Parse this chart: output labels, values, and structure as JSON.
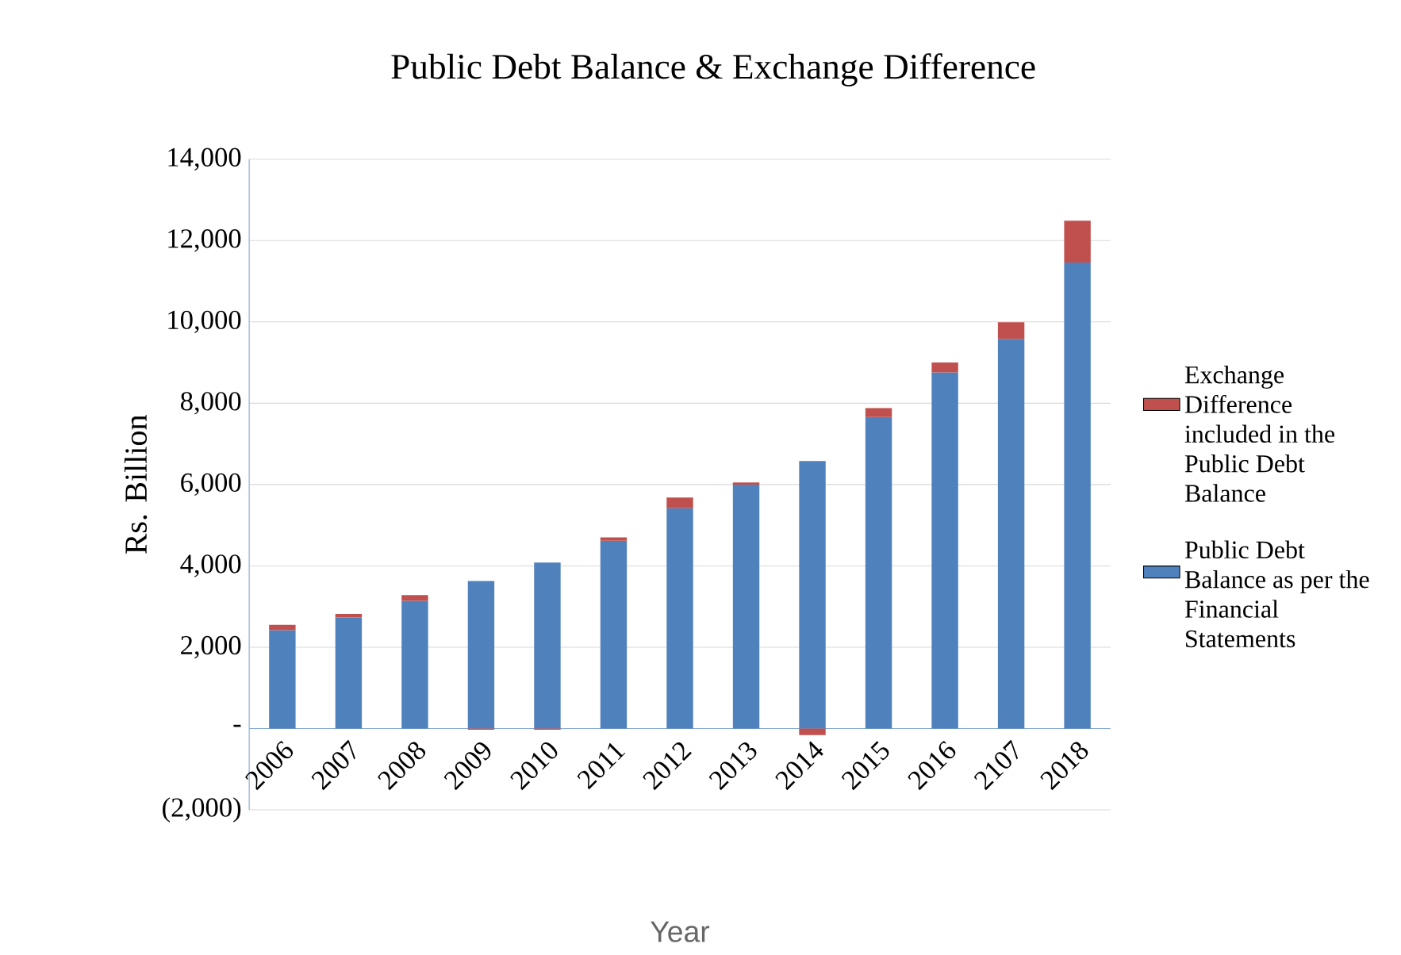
{
  "chart_data": {
    "type": "bar",
    "stacked": true,
    "title": "Public Debt Balance & Exchange Difference",
    "xlabel": "Year",
    "ylabel": "Rs. Billion",
    "categories": [
      "2006",
      "2007",
      "2008",
      "2009",
      "2010",
      "2011",
      "2012",
      "2013",
      "2014",
      "2015",
      "2016",
      "2107",
      "2018"
    ],
    "series": [
      {
        "name": "Public Debt Balance as per the Financial Statements",
        "color": "#4f81bd",
        "values": [
          2420,
          2730,
          3140,
          3630,
          4080,
          4620,
          5420,
          6000,
          6580,
          7660,
          8760,
          9580,
          11460
        ]
      },
      {
        "name": "Exchange Difference included in the Public Debt Balance",
        "color": "#c0504d",
        "values": [
          130,
          90,
          140,
          -30,
          -30,
          80,
          260,
          50,
          -160,
          220,
          240,
          410,
          1030
        ]
      }
    ],
    "ylim": [
      -2000,
      14000
    ],
    "yticks": [
      {
        "value": -2000,
        "label": "(2,000)"
      },
      {
        "value": 0,
        "label": "-"
      },
      {
        "value": 2000,
        "label": "2,000"
      },
      {
        "value": 4000,
        "label": "4,000"
      },
      {
        "value": 6000,
        "label": "6,000"
      },
      {
        "value": 8000,
        "label": "8,000"
      },
      {
        "value": 10000,
        "label": "10,000"
      },
      {
        "value": 12000,
        "label": "12,000"
      },
      {
        "value": 14000,
        "label": "14,000"
      }
    ],
    "grid": "y",
    "legend": "right"
  }
}
